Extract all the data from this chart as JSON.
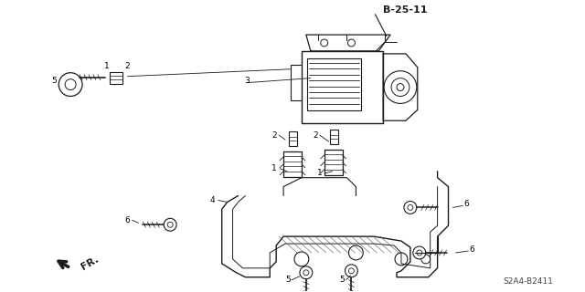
{
  "title": "B-25-11",
  "part_number": "S2A4-B2411",
  "background_color": "#ffffff",
  "line_color": "#1a1a1a",
  "figure_width": 6.4,
  "figure_height": 3.2,
  "dpi": 100
}
